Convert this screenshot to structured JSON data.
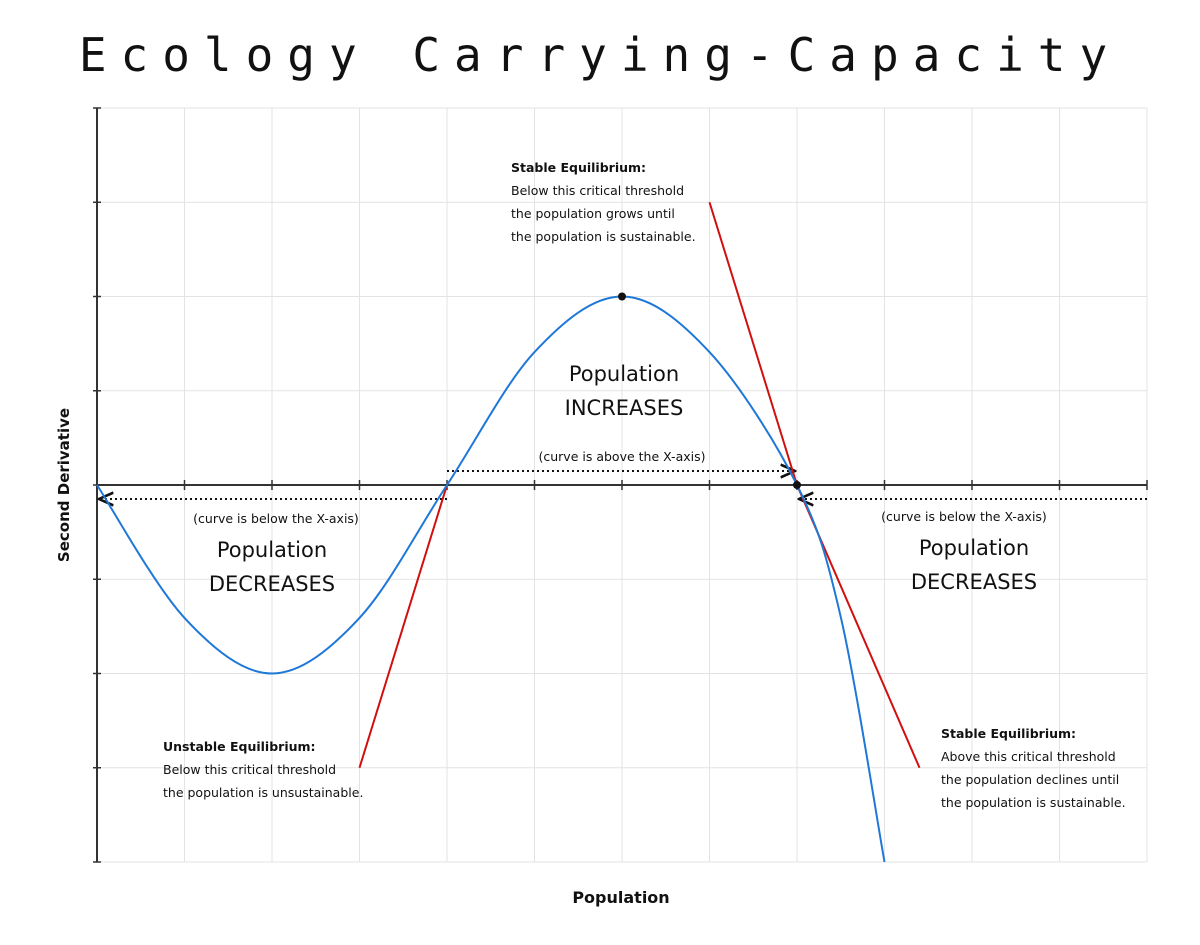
{
  "title": "Ecology Carrying-Capacity",
  "xlabel": "Population",
  "ylabel": "Second Derivative",
  "colors": {
    "curve": "#1f78d8",
    "tangent": "#d10f0f",
    "grid": "#e3e3e3",
    "axis": "#333333",
    "point": "#111111"
  },
  "regions": {
    "left": {
      "line1": "Population",
      "line2": "DECREASES",
      "note": "(curve is below the X-axis)"
    },
    "middle": {
      "line1": "Population",
      "line2": "INCREASES",
      "note": "(curve is above the X-axis)"
    },
    "right": {
      "line1": "Population",
      "line2": "DECREASES",
      "note": "(curve is below the X-axis)"
    }
  },
  "annotations": {
    "unstable": {
      "head": "Unstable Equilibrium:",
      "line1": "Below this critical threshold",
      "line2": "the population is unsustainable."
    },
    "stable_top": {
      "head": "Stable Equilibrium:",
      "line1": "Below this critical threshold",
      "line2": "the population grows until",
      "line3": "the population is sustainable."
    },
    "stable_right": {
      "head": "Stable Equilibrium:",
      "line1": "Above this critical threshold",
      "line2": "the population declines until",
      "line3": "the population is sustainable."
    }
  },
  "chart_data": {
    "type": "line",
    "title": "Ecology Carrying-Capacity",
    "xlabel": "Population",
    "ylabel": "Second Derivative",
    "xlim": [
      0,
      12
    ],
    "ylim": [
      -4,
      4
    ],
    "grid": true,
    "series": [
      {
        "points": [
          [
            0,
            0
          ],
          [
            1,
            -1.41
          ],
          [
            2,
            -2
          ],
          [
            3,
            -1.41
          ],
          [
            4,
            0
          ],
          [
            5,
            1.41
          ],
          [
            6,
            2
          ],
          [
            7,
            1.41
          ],
          [
            8,
            0
          ],
          [
            8.5,
            -1.4
          ],
          [
            9,
            -4
          ]
        ]
      }
    ],
    "tangent_lines": [
      {
        "from": [
          3,
          -3
        ],
        "to": [
          4,
          0
        ]
      },
      {
        "from": [
          7,
          3
        ],
        "to": [
          8,
          0
        ]
      },
      {
        "from": [
          8,
          0
        ],
        "to": [
          9.4,
          -3
        ]
      }
    ],
    "marked_points": [
      [
        6,
        2
      ],
      [
        8,
        0
      ]
    ],
    "equilibria": [
      4,
      8
    ]
  }
}
